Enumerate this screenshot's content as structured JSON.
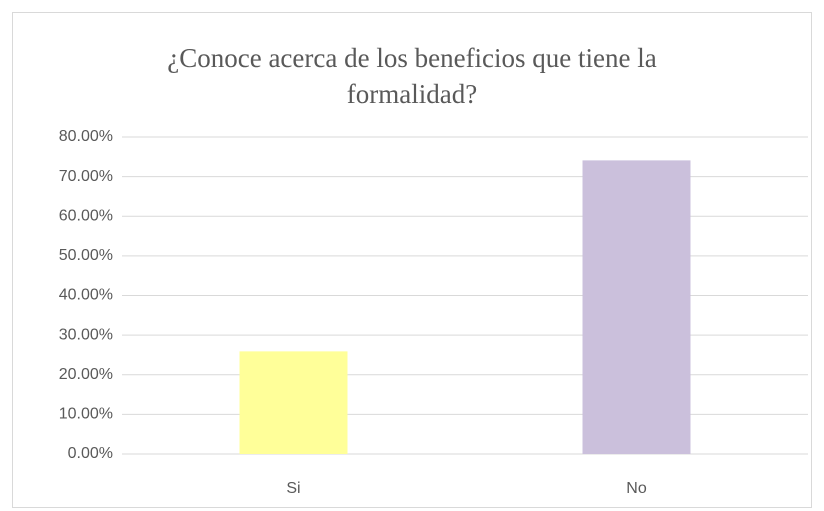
{
  "chart_data": {
    "type": "bar",
    "title": "¿Conoce acerca de los beneficios que tiene la formalidad?",
    "categories": [
      "Si",
      "No"
    ],
    "values": [
      25.9,
      74.1
    ],
    "colors": [
      "#ffff99",
      "#cbc0dc"
    ],
    "ylim": [
      0,
      80
    ],
    "yticks": [
      {
        "value": 0,
        "label": "0.00%"
      },
      {
        "value": 10,
        "label": "10.00%"
      },
      {
        "value": 20,
        "label": "20.00%"
      },
      {
        "value": 30,
        "label": "30.00%"
      },
      {
        "value": 40,
        "label": "40.00%"
      },
      {
        "value": 50,
        "label": "50.00%"
      },
      {
        "value": 60,
        "label": "60.00%"
      },
      {
        "value": 70,
        "label": "70.00%"
      },
      {
        "value": 80,
        "label": "80.00%"
      }
    ],
    "grid": true
  }
}
